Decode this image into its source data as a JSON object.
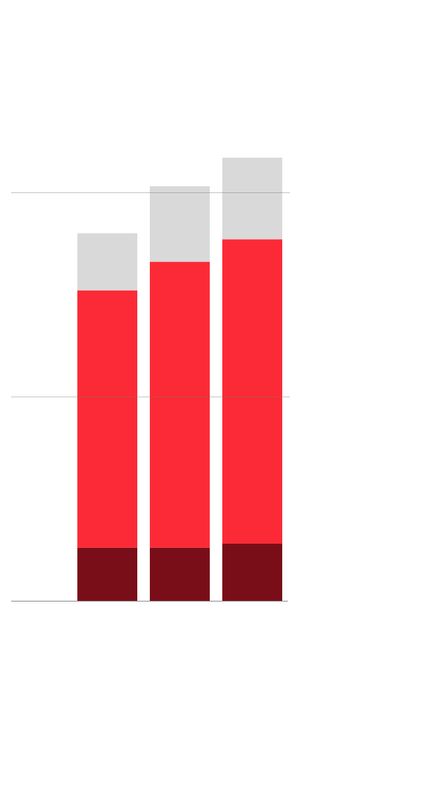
{
  "chart_data": {
    "type": "bar",
    "stacked": true,
    "categories": [
      "",
      "",
      ""
    ],
    "series": [
      {
        "values": [
          0.26,
          0.26,
          0.28
        ],
        "color": "#7a0e18"
      },
      {
        "values": [
          1.26,
          1.4,
          1.49
        ],
        "color": "#fc2a36"
      },
      {
        "values": [
          0.28,
          0.37,
          0.4
        ],
        "color": "#d9d9d9"
      }
    ],
    "ylim": [
      0,
      2
    ],
    "gridlines": [
      0,
      1,
      2
    ],
    "grid": true,
    "title": "",
    "xlabel": "",
    "ylabel": ""
  }
}
